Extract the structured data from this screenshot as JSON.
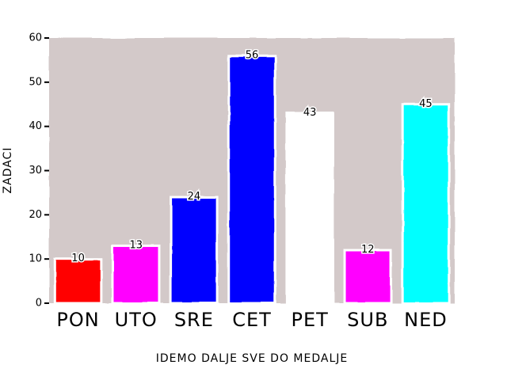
{
  "chart_data": {
    "type": "bar",
    "categories": [
      "PON",
      "UTO",
      "SRE",
      "CET",
      "PET",
      "SUB",
      "NED"
    ],
    "values": [
      10,
      13,
      24,
      56,
      43,
      12,
      45
    ],
    "colors": [
      "#ff0000",
      "#ff00ff",
      "#0000ff",
      "#0000ff",
      "#ffffff",
      "#ff00ff",
      "#00ffff"
    ],
    "title": "",
    "xlabel": "IDEMO DALJE SVE DO MEDALJE",
    "ylabel": "ZADACI",
    "ylim": [
      0,
      60
    ],
    "yticks": [
      0,
      10,
      20,
      30,
      40,
      50,
      60
    ],
    "plot_background": "#d3c9c9",
    "grid": false,
    "legend": "none"
  }
}
